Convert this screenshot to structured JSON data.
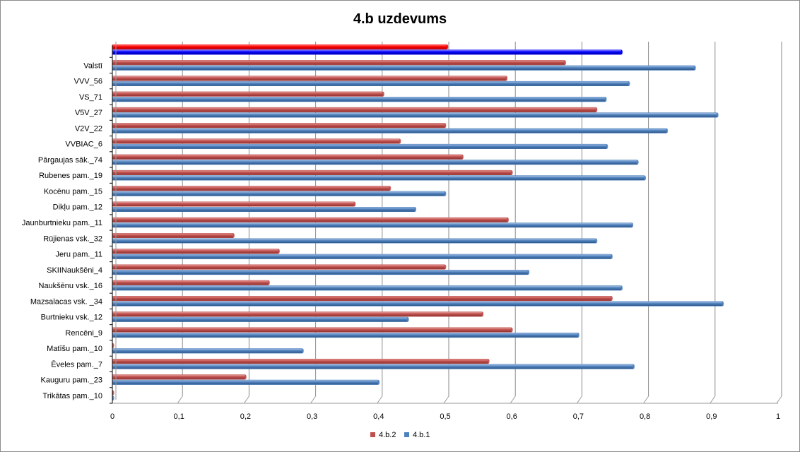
{
  "chart_data": {
    "type": "bar",
    "orientation": "horizontal",
    "title": "4.b uzdevums",
    "xlabel": "",
    "ylabel": "",
    "xlim": [
      0,
      1
    ],
    "x_ticks": [
      "0",
      "0,1",
      "0,2",
      "0,3",
      "0,4",
      "0,5",
      "0,6",
      "0,7",
      "0,8",
      "0,9",
      "1"
    ],
    "grid": "vertical",
    "legend_position": "bottom",
    "categories": [
      "Trikātas pam._10",
      "Kauguru pam._23",
      "Ēveles pam._7",
      "Matīšu pam._10",
      "Rencēni_9",
      "Burtnieku vsk._12",
      "Mazsalacas vsk. _34",
      "Naukšēnu vsk._16",
      "SKIINaukšēni_4",
      "Jeru pam._11",
      "Rūjienas vsk._32",
      "Jaunburtnieku pam._11",
      "Dikļu pam._12",
      "Kocēnu pam._15",
      "Rubenes pam._19",
      "Pārgaujas sāk._74",
      "VVBIAC_6",
      "V2V_22",
      "V5V_27",
      "VS_71",
      "VVV_56",
      "Valstī",
      ""
    ],
    "series": [
      {
        "name": "4.b.2",
        "color": "#c0504d",
        "values": [
          0,
          0.2,
          0.565,
          0,
          0.6,
          0.556,
          0.75,
          0.235,
          0.5,
          0.25,
          0.182,
          0.594,
          0.364,
          0.417,
          0.6,
          0.526,
          0.432,
          0.5,
          0.727,
          0.407,
          0.592,
          0.68,
          0.503
        ]
      },
      {
        "name": "4.b.1",
        "color": "#4f81bd",
        "values": [
          0,
          0.4,
          0.783,
          0.286,
          0.7,
          0.444,
          0.917,
          0.765,
          0.625,
          0.75,
          0.727,
          0.781,
          0.455,
          0.5,
          0.8,
          0.789,
          0.743,
          0.833,
          0.909,
          0.741,
          0.776,
          0.875,
          0.765
        ]
      }
    ],
    "highlight": {
      "category_index": 22,
      "colors": [
        "#ff0000",
        "#0000ff"
      ]
    }
  }
}
